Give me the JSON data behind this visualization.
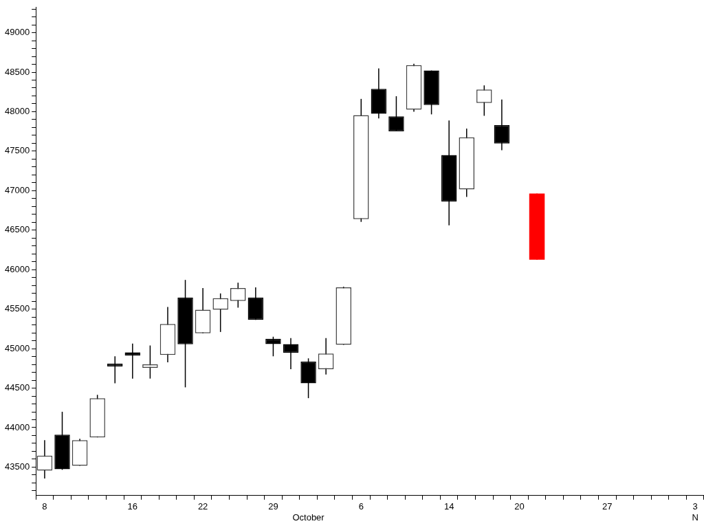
{
  "chart_data": {
    "type": "candlestick",
    "categories": [
      "8",
      null,
      null,
      null,
      null,
      "16",
      null,
      null,
      null,
      "22",
      null,
      null,
      null,
      "29",
      null,
      "\nOctober",
      null,
      null,
      "6",
      null,
      null,
      null,
      null,
      "14",
      null,
      null,
      null,
      "20",
      null,
      null,
      null,
      null,
      "27",
      null,
      null,
      null,
      null,
      "3\nN"
    ],
    "series": [
      {
        "color": "#000000",
        "colors": [
          "#404040",
          "#000000",
          "#404040",
          "#404040",
          "#000000",
          "#000000",
          "#404040",
          "#404040",
          "#000000",
          "#404040",
          "#404040",
          "#404040",
          "#000000",
          "#000000",
          "#000000",
          "#000000",
          "#404040",
          "#404040",
          "#404040",
          "#000000",
          "#000000",
          "#404040",
          "#000000",
          "#000000",
          "#404040",
          "#404040",
          "#000000",
          null,
          null,
          null,
          null,
          null,
          null,
          null,
          null,
          null,
          null,
          null
        ],
        "ohlc": [
          [
            43457,
            43842,
            43355,
            43645
          ],
          [
            43911,
            44201,
            43466,
            43474
          ],
          [
            43517,
            43859,
            43517,
            43842
          ],
          [
            43876,
            44415,
            43876,
            44373
          ],
          [
            44809,
            44903,
            44561,
            44775
          ],
          [
            44954,
            45065,
            44621,
            44911
          ],
          [
            44758,
            45040,
            44621,
            44800
          ],
          [
            44920,
            45527,
            44826,
            45313
          ],
          [
            45647,
            45870,
            44510,
            45056
          ],
          [
            45194,
            45767,
            45194,
            45493
          ],
          [
            45493,
            45699,
            45211,
            45639
          ],
          [
            45604,
            45835,
            45519,
            45767
          ],
          [
            45647,
            45775,
            45365,
            45365
          ],
          [
            45125,
            45151,
            44903,
            45057
          ],
          [
            45057,
            45134,
            44740,
            44946
          ],
          [
            44835,
            44877,
            44373,
            44561
          ],
          [
            44740,
            45134,
            44672,
            44937
          ],
          [
            45048,
            45784,
            45048,
            45775
          ],
          [
            46639,
            48162,
            46605,
            47957
          ],
          [
            48290,
            48547,
            47914,
            47974
          ],
          [
            47940,
            48196,
            47752,
            47752
          ],
          [
            48025,
            48607,
            47999,
            48590
          ],
          [
            48521,
            48521,
            47966,
            48085
          ],
          [
            47452,
            47889,
            46562,
            46862
          ],
          [
            47015,
            47786,
            46921,
            47675
          ],
          [
            48110,
            48333,
            47948,
            48281
          ],
          [
            47829,
            48153,
            47512,
            47598
          ],
          null,
          null,
          null,
          null,
          null,
          null,
          null,
          null,
          null,
          null,
          null
        ]
      },
      {
        "color": "#ff0000",
        "ohlc": [
          null,
          null,
          null,
          null,
          null,
          null,
          null,
          null,
          null,
          null,
          null,
          null,
          null,
          null,
          null,
          null,
          null,
          null,
          null,
          null,
          null,
          null,
          null,
          null,
          null,
          null,
          null,
          null,
          [
            46126,
            46964,
            46126,
            46964
          ],
          null,
          null,
          null,
          null,
          null,
          null,
          null,
          null,
          null
        ]
      }
    ],
    "ylim": [
      43140,
      49320
    ],
    "yticks": [
      {
        "value": 43200,
        "label": null
      },
      {
        "value": 43300,
        "label": null
      },
      {
        "value": 43400,
        "label": null
      },
      43500,
      {
        "value": 43600,
        "label": null
      },
      {
        "value": 43700,
        "label": null
      },
      {
        "value": 43800,
        "label": null
      },
      {
        "value": 43900,
        "label": null
      },
      44000,
      {
        "value": 44100,
        "label": null
      },
      {
        "value": 44200,
        "label": null
      },
      {
        "value": 44300,
        "label": null
      },
      {
        "value": 44400,
        "label": null
      },
      44500,
      {
        "value": 44600,
        "label": null
      },
      {
        "value": 44700,
        "label": null
      },
      {
        "value": 44800,
        "label": null
      },
      {
        "value": 44900,
        "label": null
      },
      45000,
      {
        "value": 45100,
        "label": null
      },
      {
        "value": 45200,
        "label": null
      },
      {
        "value": 45300,
        "label": null
      },
      {
        "value": 45400,
        "label": null
      },
      45500,
      {
        "value": 45600,
        "label": null
      },
      {
        "value": 45700,
        "label": null
      },
      {
        "value": 45800,
        "label": null
      },
      {
        "value": 45900,
        "label": null
      },
      46000,
      {
        "value": 46100,
        "label": null
      },
      {
        "value": 46200,
        "label": null
      },
      {
        "value": 46300,
        "label": null
      },
      {
        "value": 46400,
        "label": null
      },
      46500,
      {
        "value": 46600,
        "label": null
      },
      {
        "value": 46700,
        "label": null
      },
      {
        "value": 46800,
        "label": null
      },
      {
        "value": 46900,
        "label": null
      },
      47000,
      {
        "value": 47100,
        "label": null
      },
      {
        "value": 47200,
        "label": null
      },
      {
        "value": 47300,
        "label": null
      },
      {
        "value": 47400,
        "label": null
      },
      47500,
      {
        "value": 47600,
        "label": null
      },
      {
        "value": 47700,
        "label": null
      },
      {
        "value": 47800,
        "label": null
      },
      {
        "value": 47900,
        "label": null
      },
      48000,
      {
        "value": 48100,
        "label": null
      },
      {
        "value": 48200,
        "label": null
      },
      {
        "value": 48300,
        "label": null
      },
      {
        "value": 48400,
        "label": null
      },
      48500,
      {
        "value": 48600,
        "label": null
      },
      {
        "value": 48700,
        "label": null
      },
      {
        "value": 48800,
        "label": null
      },
      {
        "value": 48900,
        "label": null
      },
      49000,
      {
        "value": 49100,
        "label": null
      },
      {
        "value": 49200,
        "label": null
      },
      {
        "value": 49300,
        "label": null
      }
    ],
    "grid": false,
    "legend": false
  }
}
